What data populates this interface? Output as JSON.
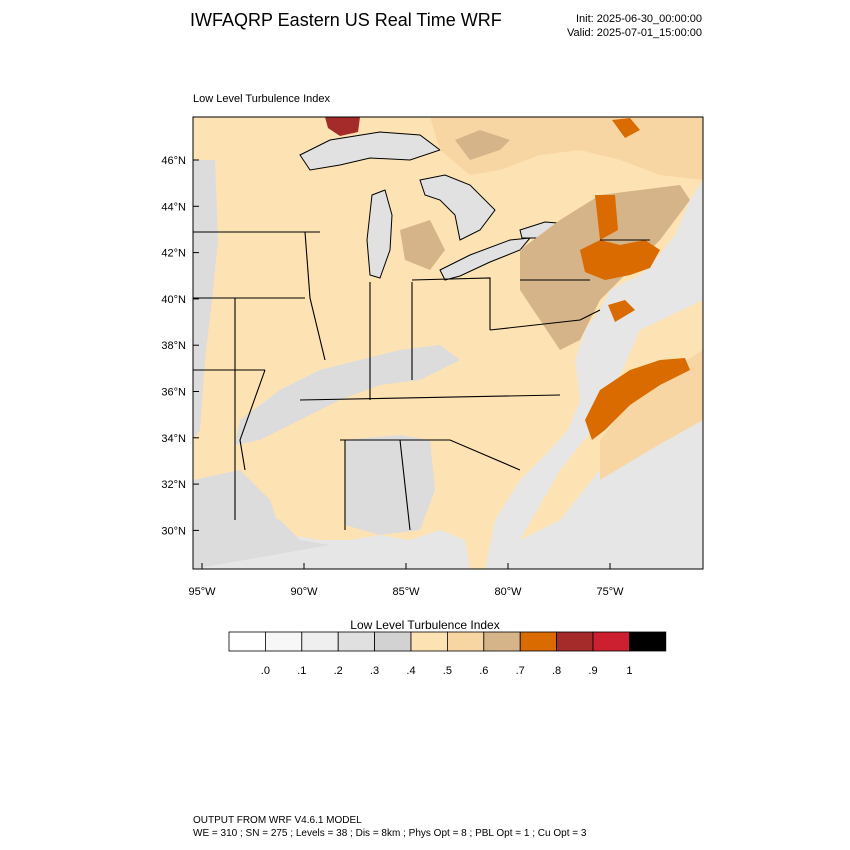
{
  "header": {
    "title": "IWFAQRP Eastern US Real Time WRF",
    "init": "Init: 2025-06-30_00:00:00",
    "valid": "Valid: 2025-07-01_15:00:00"
  },
  "map": {
    "subtitle": "Low Level Turbulence Index",
    "lat_labels": [
      "46°N",
      "44°N",
      "42°N",
      "40°N",
      "38°N",
      "36°N",
      "34°N",
      "32°N",
      "30°N"
    ],
    "lon_labels": [
      "95°W",
      "90°W",
      "85°W",
      "80°W",
      "75°W"
    ],
    "colors": {
      "land_base": "#fde2b3",
      "water_base": "#e6e6e6",
      "lake": "#e1e1e1",
      "light_gray": "#dcdcdc",
      "tan_light": "#f8d6a3",
      "tan": "#d6b48a",
      "orange": "#d96b00",
      "dark_red": "#a52a2a",
      "red": "#cc2030"
    }
  },
  "colorbar": {
    "title": "Low Level Turbulence Index",
    "labels": [
      ".0",
      ".1",
      ".2",
      ".3",
      ".4",
      ".5",
      ".6",
      ".7",
      ".8",
      ".9",
      "1"
    ],
    "colors": [
      "#ffffff",
      "#f7f7f7",
      "#efefef",
      "#e0e0e0",
      "#d2d2d2",
      "#fde2b3",
      "#f8d6a3",
      "#d6b48a",
      "#d96b00",
      "#a52a2a",
      "#cc2030",
      "#000000"
    ]
  },
  "footer": {
    "line1": "OUTPUT FROM WRF V4.6.1 MODEL",
    "line2": "WE = 310 ; SN = 275 ; Levels = 38 ; Dis = 8km ; Phys Opt = 8 ; PBL Opt = 1 ; Cu Opt = 3"
  }
}
